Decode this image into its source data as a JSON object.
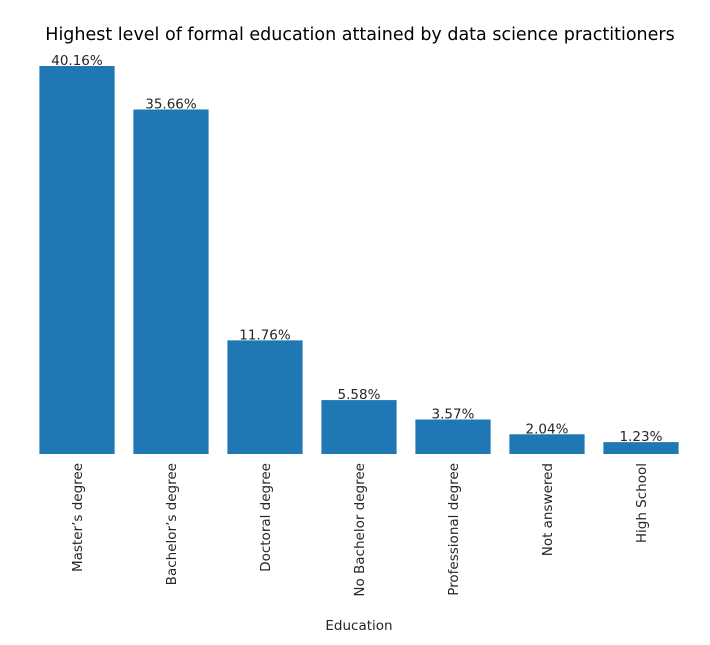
{
  "chart_data": {
    "type": "bar",
    "title": "Highest level of formal education attained by data science practitioners",
    "xlabel": "Education",
    "ylabel": "",
    "categories": [
      "Master’s degree",
      "Bachelor’s degree",
      "Doctoral degree",
      "No Bachelor degree",
      "Professional degree",
      "Not answered",
      "High School"
    ],
    "values": [
      40.16,
      35.66,
      11.76,
      5.58,
      3.57,
      2.04,
      1.23
    ],
    "data_labels": [
      "40.16%",
      "35.66%",
      "11.76%",
      "5.58%",
      "3.57%",
      "2.04%",
      "1.23%"
    ],
    "ylim": [
      0,
      40.16
    ],
    "grid": false,
    "legend": "none",
    "bar_color": "#1f77b4"
  }
}
